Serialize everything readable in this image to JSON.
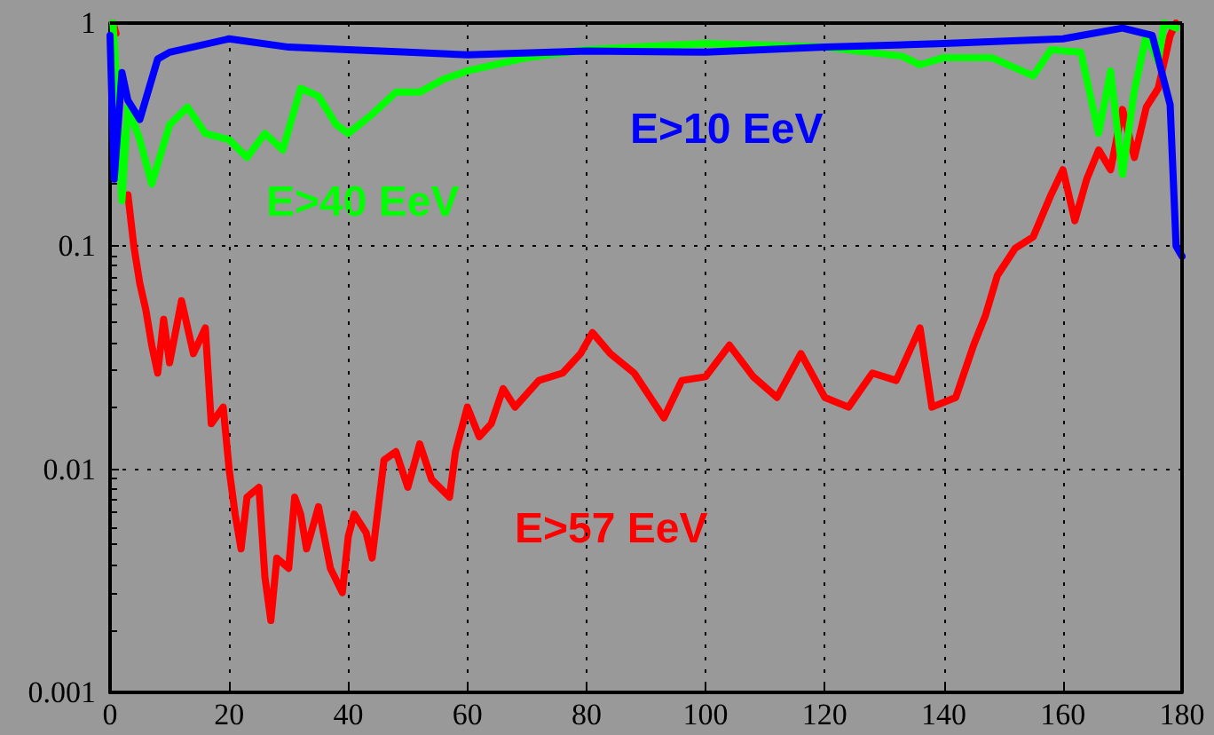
{
  "chart_data": {
    "type": "line",
    "log": "y",
    "grid": true,
    "legend": false,
    "marker": "none",
    "line_style": "solid",
    "xlim": [
      0,
      180
    ],
    "xticks": [
      0,
      20,
      40,
      60,
      80,
      100,
      120,
      140,
      160,
      180
    ],
    "ylim": [
      0.001,
      1
    ],
    "yticks": [
      0.001,
      0.01,
      0.1,
      1
    ],
    "series": [
      {
        "name": "E>57 EeV",
        "color": "#ff0000",
        "x": [
          0.5,
          1,
          2,
          3,
          4,
          5,
          6,
          7,
          8,
          9,
          10,
          12,
          14,
          16,
          17,
          19,
          20,
          21,
          22,
          23,
          25,
          26,
          27,
          28,
          30,
          31,
          32,
          33,
          35,
          37,
          39,
          40,
          41,
          43,
          44,
          46,
          48,
          50,
          52,
          54,
          57,
          58,
          60,
          62,
          64,
          66,
          68,
          72,
          76,
          79,
          81,
          84,
          88,
          93,
          96,
          100,
          104,
          108,
          112,
          116,
          120,
          124,
          128,
          132,
          136,
          138,
          142,
          145,
          147,
          149,
          152,
          155,
          158,
          160,
          162,
          164,
          166,
          168,
          170,
          172,
          174,
          176,
          178,
          179
        ],
        "values": [
          1,
          0.9,
          null,
          0.17,
          0.1,
          0.068,
          0.052,
          0.036,
          0.027,
          0.047,
          0.03,
          0.057,
          0.033,
          0.043,
          0.016,
          0.019,
          0.01,
          0.0063,
          0.0044,
          0.0075,
          0.0083,
          0.0033,
          0.0021,
          0.004,
          0.0036,
          0.0075,
          0.0063,
          0.0044,
          0.0068,
          0.0036,
          0.0028,
          0.005,
          0.0063,
          0.0052,
          0.004,
          0.011,
          0.012,
          0.0083,
          0.013,
          0.009,
          0.0075,
          0.012,
          0.019,
          0.014,
          0.016,
          0.023,
          0.019,
          0.025,
          0.027,
          0.033,
          0.041,
          0.033,
          0.027,
          0.017,
          0.025,
          0.026,
          0.036,
          0.026,
          0.021,
          0.033,
          0.021,
          0.019,
          0.027,
          0.025,
          0.043,
          0.019,
          0.021,
          0.036,
          0.049,
          0.074,
          0.098,
          0.11,
          0.17,
          0.22,
          0.13,
          0.2,
          0.27,
          0.22,
          0.41,
          0.25,
          0.42,
          0.51,
          0.88,
          1
        ]
      },
      {
        "name": "E>40 EeV",
        "color": "#00ff00",
        "x": [
          0.5,
          1,
          2,
          3,
          5,
          7,
          10,
          13,
          16,
          20,
          23,
          26,
          29,
          32,
          35,
          38,
          40,
          44,
          48,
          52,
          56,
          60,
          70,
          80,
          100,
          120,
          133,
          136,
          140,
          148,
          155,
          158,
          163,
          166,
          168,
          170,
          172,
          174,
          176,
          177,
          179
        ],
        "values": [
          1,
          0.6,
          0.16,
          0.42,
          0.3,
          0.19,
          0.35,
          0.42,
          0.32,
          0.3,
          0.25,
          0.32,
          0.27,
          0.51,
          0.47,
          0.35,
          0.32,
          0.39,
          0.49,
          0.49,
          0.56,
          0.61,
          0.7,
          0.76,
          0.81,
          0.78,
          0.71,
          0.65,
          0.7,
          0.7,
          0.58,
          0.76,
          0.74,
          0.32,
          0.61,
          0.21,
          0.5,
          0.88,
          0.67,
          1,
          0.95
        ]
      },
      {
        "name": "E>10 EeV",
        "color": "#0000ff",
        "x": [
          0,
          0.7,
          2,
          3,
          5,
          8,
          10,
          20,
          30,
          40,
          50,
          60,
          80,
          100,
          120,
          140,
          160,
          170,
          175,
          178,
          179,
          180
        ],
        "values": [
          0.88,
          0.2,
          0.6,
          0.45,
          0.37,
          0.69,
          0.74,
          0.85,
          0.78,
          0.76,
          0.74,
          0.72,
          0.75,
          0.74,
          0.78,
          0.81,
          0.85,
          0.95,
          0.88,
          0.43,
          0.1,
          0.09
        ]
      }
    ]
  }
}
